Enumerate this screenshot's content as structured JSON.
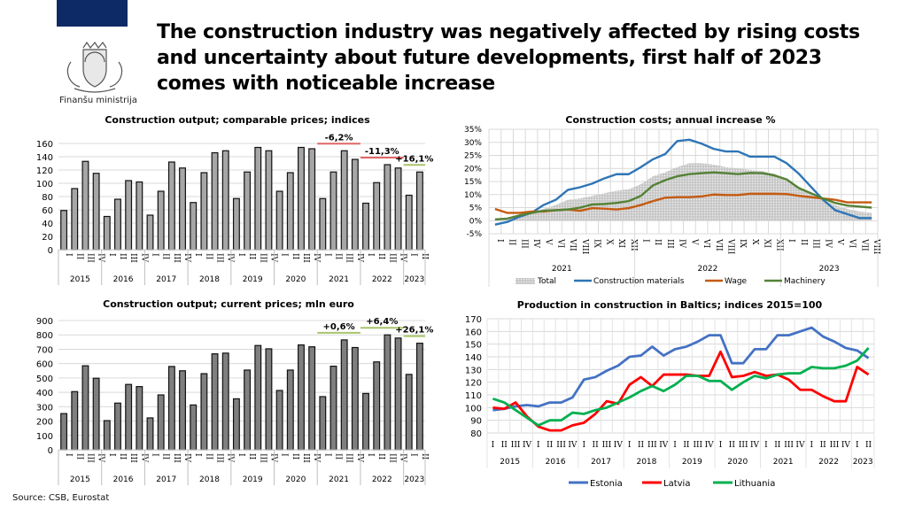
{
  "header": {
    "title": "The construction industry was negatively affected by rising costs and uncertainty about future developments, first half of 2023 comes with noticeable increase",
    "logo_text": "Finanšu ministrija"
  },
  "footer": {
    "source": "Source: CSB, Eurostat"
  },
  "colors": {
    "bar_light": "#a6a6a6",
    "bar_dark": "#7f7f7f",
    "estonia": "#4472c4",
    "latvia": "#ff0000",
    "lithuania": "#00b050",
    "materials": "#2e75b6",
    "wage": "#c55a11",
    "machinery": "#548235",
    "neg_line": "#e06666",
    "pos_line": "#a9c46b"
  },
  "chart_data": [
    {
      "type": "bar",
      "title": "Construction output; comparable prices; indices",
      "years": [
        "2015",
        "2016",
        "2017",
        "2018",
        "2019",
        "2020",
        "2021",
        "2022",
        "2023"
      ],
      "quarters": [
        "I",
        "II",
        "III",
        "IV"
      ],
      "categories": [
        "2015 I",
        "2015 II",
        "2015 III",
        "2015 IV",
        "2016 I",
        "2016 II",
        "2016 III",
        "2016 IV",
        "2017 I",
        "2017 II",
        "2017 III",
        "2017 IV",
        "2018 I",
        "2018 II",
        "2018 III",
        "2018 IV",
        "2019 I",
        "2019 II",
        "2019 III",
        "2019 IV",
        "2020 I",
        "2020 II",
        "2020 III",
        "2020 IV",
        "2021 I",
        "2021 II",
        "2021 III",
        "2021 IV",
        "2022 I",
        "2022 II",
        "2022 III",
        "2022 IV",
        "2023 I",
        "2023 II"
      ],
      "values": [
        59,
        92,
        133,
        115,
        50,
        76,
        104,
        102,
        52,
        88,
        132,
        123,
        71,
        116,
        146,
        149,
        77,
        117,
        154,
        149,
        88,
        116,
        154,
        152,
        77,
        117,
        149,
        136,
        70,
        101,
        128,
        123,
        82,
        117
      ],
      "ylim": [
        0,
        160
      ],
      "yticks": [
        0,
        20,
        40,
        60,
        80,
        100,
        120,
        140,
        160
      ],
      "annotations": [
        {
          "text": "-6,2%",
          "from": 24,
          "to": 27,
          "type": "neg"
        },
        {
          "text": "-11,3%",
          "from": 28,
          "to": 31,
          "type": "neg"
        },
        {
          "text": "+16,1%",
          "from": 32,
          "to": 33,
          "type": "pos"
        }
      ],
      "grid": true
    },
    {
      "type": "line",
      "title": "Construction costs; annual increase %",
      "months": [
        "I",
        "II",
        "III",
        "IV",
        "V",
        "VI",
        "VII",
        "VIII",
        "IX",
        "X",
        "XI",
        "XII",
        "I",
        "II",
        "III",
        "IV",
        "V",
        "VI",
        "VII",
        "VIII",
        "IX",
        "X",
        "XI",
        "XII",
        "I",
        "II",
        "III",
        "IV",
        "V",
        "VI",
        "VII",
        "VIII"
      ],
      "years": [
        {
          "label": "2021",
          "months": 12
        },
        {
          "label": "2022",
          "months": 12
        },
        {
          "label": "2023",
          "months": 8
        }
      ],
      "ylim": [
        -5,
        35
      ],
      "yticks": [
        "-5%",
        "0%",
        "5%",
        "10%",
        "15%",
        "20%",
        "25%",
        "30%",
        "35%"
      ],
      "series": [
        {
          "name": "Total",
          "kind": "area",
          "values": [
            0.5,
            1,
            2.5,
            3.5,
            4.5,
            6,
            8,
            8.5,
            9.5,
            10.5,
            11.5,
            12,
            14,
            17,
            18.5,
            20.5,
            22,
            22,
            21.5,
            20.5,
            20,
            19.5,
            19,
            18,
            16,
            13,
            10,
            8,
            6,
            4.5,
            3.5,
            3
          ]
        },
        {
          "name": "Construction materials",
          "kind": "line",
          "values": [
            -1.5,
            -0.5,
            1.5,
            3,
            6,
            8,
            11.8,
            12.8,
            14.2,
            16.2,
            17.8,
            17.8,
            20.5,
            23.5,
            25.5,
            30.5,
            31,
            29.5,
            27.5,
            26.5,
            26.5,
            24.5,
            24.5,
            24.5,
            22,
            18,
            13,
            8,
            4,
            2.5,
            1,
            1
          ]
        },
        {
          "name": "Wage",
          "kind": "line",
          "values": [
            4.5,
            3,
            3,
            3.5,
            3.5,
            4,
            4.3,
            3.8,
            4.8,
            4.6,
            4.3,
            4.8,
            6,
            7.5,
            8.8,
            9,
            9,
            9.3,
            10,
            9.8,
            9.8,
            10.3,
            10.3,
            10.3,
            10.2,
            9.5,
            9,
            8.5,
            8,
            7,
            7,
            7
          ]
        },
        {
          "name": "Machinery",
          "kind": "line",
          "values": [
            0.5,
            0.8,
            2,
            3,
            3.8,
            4,
            4.3,
            5,
            6.2,
            6.4,
            6.8,
            7.5,
            9.5,
            13.5,
            15.5,
            17,
            17.8,
            18.2,
            18.5,
            18.2,
            17.8,
            18.3,
            18.2,
            17.3,
            15.8,
            12.5,
            10.5,
            8.5,
            6.8,
            5.8,
            5.4,
            5
          ]
        }
      ],
      "legend": [
        "Total",
        "Construction materials",
        "Wage",
        "Machinery"
      ],
      "legend_position": "bottom",
      "grid": true
    },
    {
      "type": "bar",
      "title": "Construction output; current prices; mln euro",
      "years": [
        "2015",
        "2016",
        "2017",
        "2018",
        "2019",
        "2020",
        "2021",
        "2022",
        "2023"
      ],
      "quarters": [
        "I",
        "II",
        "III",
        "IV"
      ],
      "values": [
        252,
        405,
        585,
        498,
        203,
        325,
        455,
        440,
        222,
        382,
        580,
        550,
        312,
        530,
        668,
        673,
        355,
        555,
        726,
        703,
        413,
        555,
        730,
        717,
        370,
        582,
        765,
        712,
        392,
        612,
        800,
        778,
        525,
        742
      ],
      "ylim": [
        0,
        900
      ],
      "yticks": [
        0,
        100,
        200,
        300,
        400,
        500,
        600,
        700,
        800,
        900
      ],
      "annotations": [
        {
          "text": "+0,6%",
          "from": 24,
          "to": 27,
          "type": "pos"
        },
        {
          "text": "+6,4%",
          "from": 28,
          "to": 31,
          "type": "pos"
        },
        {
          "text": "+26,1%",
          "from": 32,
          "to": 33,
          "type": "pos"
        }
      ],
      "grid": true
    },
    {
      "type": "line",
      "title": "Production in construction in Baltics; indices 2015=100",
      "years": [
        "2015",
        "2016",
        "2017",
        "2018",
        "2019",
        "2020",
        "2021",
        "2022",
        "2023"
      ],
      "quarters": [
        "I",
        "II",
        "III",
        "IV"
      ],
      "ylim": [
        80,
        170
      ],
      "yticks": [
        80,
        90,
        100,
        110,
        120,
        130,
        140,
        150,
        160,
        170
      ],
      "series": [
        {
          "name": "Estonia",
          "values": [
            98,
            99,
            101,
            102,
            101,
            104,
            104,
            108,
            122,
            124,
            129,
            133,
            140,
            141,
            148,
            141,
            146,
            148,
            152,
            157,
            157,
            135,
            135,
            146,
            146,
            157,
            157,
            160,
            163,
            156,
            152,
            147,
            145,
            139
          ]
        },
        {
          "name": "Latvia",
          "values": [
            100,
            99,
            104,
            93,
            85,
            82,
            82,
            86,
            88,
            95,
            105,
            103,
            118,
            124,
            117,
            126,
            126,
            126,
            125,
            125,
            144,
            124,
            125,
            128,
            125,
            126,
            122,
            114,
            114,
            109,
            105,
            105,
            132,
            126
          ]
        },
        {
          "name": "Lithuania",
          "values": [
            107,
            104,
            98,
            92,
            86,
            90,
            90,
            96,
            95,
            98,
            100,
            104,
            108,
            113,
            117,
            113,
            118,
            125,
            125,
            121,
            121,
            114,
            120,
            125,
            123,
            126,
            127,
            127,
            132,
            131,
            131,
            133,
            137,
            147
          ]
        }
      ],
      "legend": [
        "Estonia",
        "Latvia",
        "Lithuania"
      ],
      "legend_position": "bottom",
      "grid": true
    }
  ]
}
